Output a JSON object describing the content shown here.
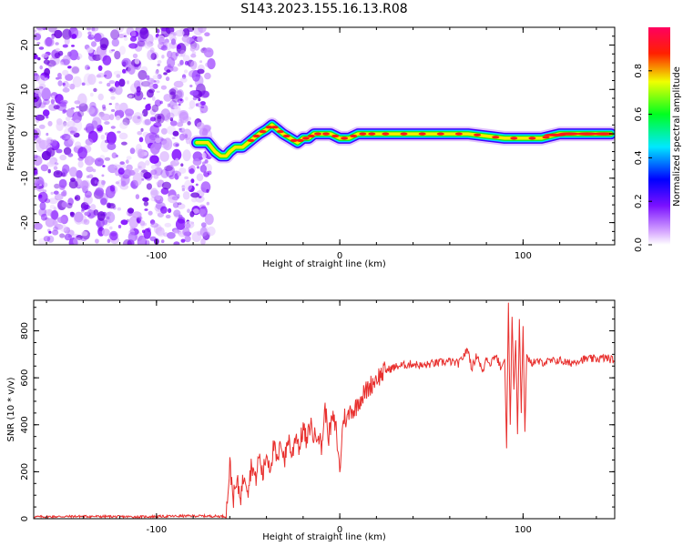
{
  "title": "S143.2023.155.16.13.R08",
  "chart_data": [
    {
      "type": "heatmap",
      "xlabel": "Height of straight line (km)",
      "ylabel": "Frequency (Hz)",
      "xlim": [
        -167,
        150
      ],
      "ylim": [
        -25,
        24
      ],
      "x_ticks": [
        -100,
        0,
        100
      ],
      "y_ticks": [
        -20,
        -10,
        0,
        10,
        20
      ],
      "noise_region": {
        "x": [
          -167,
          -75
        ],
        "description_hidden": true
      },
      "colorbar": {
        "label": "Normalized spectral amplitude",
        "range": [
          0,
          1
        ],
        "ticks": [
          0.0,
          0.2,
          0.4,
          0.6,
          0.8
        ],
        "colors": [
          "#ffffff",
          "#c080ff",
          "#6000ff",
          "#0000ff",
          "#00ffff",
          "#00ff00",
          "#ffff00",
          "#ff0000",
          "#ff0060"
        ]
      },
      "ridge": {
        "x": [
          -78,
          -72,
          -68,
          -65,
          -62,
          -60,
          -57,
          -53,
          -50,
          -47,
          -44,
          -40,
          -37,
          -34,
          -31,
          -27,
          -23,
          -20,
          -17,
          -14,
          -10,
          -5,
          0,
          5,
          10,
          15,
          20,
          30,
          40,
          50,
          60,
          70,
          80,
          90,
          100,
          110,
          115,
          120,
          130,
          140,
          148
        ],
        "y": [
          -2,
          -2,
          -4,
          -5,
          -5,
          -4,
          -3,
          -3,
          -2,
          -1,
          0,
          1,
          2,
          1,
          0,
          -1,
          -2,
          -1,
          -1,
          0,
          0,
          0,
          -1,
          -1,
          0,
          0,
          0,
          0,
          0,
          0,
          0,
          0,
          -0.5,
          -1,
          -1,
          -1,
          -0.5,
          0,
          0,
          0,
          0
        ]
      }
    },
    {
      "type": "line",
      "xlabel": "Height of straight line (km)",
      "ylabel": "SNR (10 * v/v)",
      "xlim": [
        -167,
        150
      ],
      "ylim": [
        0,
        930
      ],
      "x_ticks": [
        -100,
        0,
        100
      ],
      "y_ticks": [
        0,
        200,
        400,
        600,
        800
      ],
      "color": "#e8302e",
      "series": [
        {
          "x": [
            -167,
            -140,
            -110,
            -80,
            -62,
            -60,
            -58,
            -56,
            -54,
            -52,
            -50,
            -48,
            -46,
            -44,
            -42,
            -40,
            -38,
            -36,
            -34,
            -32,
            -30,
            -28,
            -26,
            -24,
            -22,
            -20,
            -18,
            -16,
            -14,
            -12,
            -10,
            -8,
            -6,
            -4,
            -2,
            0,
            2,
            4,
            6,
            8,
            10,
            12,
            14,
            16,
            18,
            20,
            22,
            25,
            28,
            32,
            36,
            40,
            45,
            50,
            55,
            60,
            65,
            68,
            70,
            72,
            75,
            78,
            80,
            82,
            85,
            88,
            90,
            91,
            92,
            93,
            94,
            95,
            96,
            97,
            98,
            99,
            100,
            101,
            102,
            104,
            106,
            110,
            115,
            120,
            125,
            130,
            135,
            140,
            145,
            150
          ],
          "y": [
            8,
            10,
            8,
            12,
            10,
            230,
            90,
            150,
            100,
            200,
            130,
            240,
            160,
            270,
            180,
            280,
            220,
            310,
            230,
            330,
            250,
            350,
            260,
            370,
            300,
            390,
            320,
            410,
            340,
            380,
            300,
            470,
            350,
            430,
            380,
            200,
            440,
            420,
            470,
            460,
            500,
            520,
            540,
            560,
            580,
            600,
            610,
            630,
            640,
            650,
            655,
            660,
            650,
            660,
            665,
            670,
            660,
            700,
            720,
            640,
            700,
            620,
            690,
            660,
            700,
            640,
            680,
            300,
            920,
            400,
            860,
            550,
            760,
            360,
            850,
            450,
            820,
            370,
            700,
            660,
            670,
            665,
            670,
            675,
            660,
            675,
            680,
            680,
            685,
            675
          ]
        }
      ]
    }
  ]
}
